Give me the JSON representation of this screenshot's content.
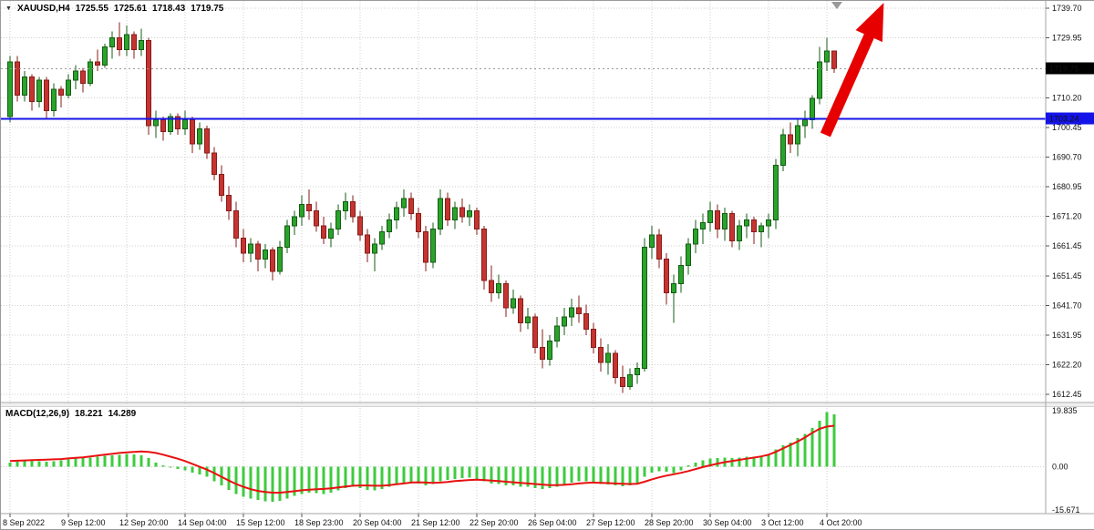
{
  "header": {
    "symbol": "XAUUSD,H4",
    "open": "1725.55",
    "high": "1725.61",
    "low": "1718.43",
    "close": "1719.75"
  },
  "colors": {
    "bull_fill": "#2aa32a",
    "bull_border": "#145c14",
    "bear_fill": "#c53430",
    "bear_border": "#871d1a",
    "macd_bar": "#3ecb3e",
    "signal_line": "#e81010",
    "hline": "#1414e8",
    "grid": "#cfcfcf",
    "frame": "#a6a6a6",
    "arrow": "#e60000",
    "tag_current_bg": "#000000",
    "tag_current_fg": "#ffffff",
    "tag_hline_fg": "#ffffff",
    "shift_marker": "#999999",
    "axis_text": "#111111"
  },
  "chart_data": {
    "type": "candlestick",
    "symbol": "XAUUSD",
    "timeframe": "H4",
    "ylim": [
      1609.8,
      1742.1
    ],
    "y_axis_labels": [
      {
        "text": "1739.70",
        "price": 1739.7
      },
      {
        "text": "1729.95",
        "price": 1729.95
      },
      {
        "text": "1710.20",
        "price": 1710.2
      },
      {
        "text": "1700.45",
        "price": 1700.45
      },
      {
        "text": "1690.70",
        "price": 1690.7
      },
      {
        "text": "1680.95",
        "price": 1680.95
      },
      {
        "text": "1671.20",
        "price": 1671.2
      },
      {
        "text": "1661.45",
        "price": 1661.45
      },
      {
        "text": "1651.45",
        "price": 1651.45
      },
      {
        "text": "1641.70",
        "price": 1641.7
      },
      {
        "text": "1631.95",
        "price": 1631.95
      },
      {
        "text": "1622.20",
        "price": 1622.2
      },
      {
        "text": "1612.45",
        "price": 1612.45
      }
    ],
    "x_labels": [
      {
        "bar": 0,
        "text": "8 Sep 2022"
      },
      {
        "bar": 8,
        "text": "9 Sep 12:00"
      },
      {
        "bar": 16,
        "text": "12 Sep 20:00"
      },
      {
        "bar": 24,
        "text": "14 Sep 04:00"
      },
      {
        "bar": 32,
        "text": "15 Sep 12:00"
      },
      {
        "bar": 40,
        "text": "18 Sep 23:00"
      },
      {
        "bar": 48,
        "text": "20 Sep 04:00"
      },
      {
        "bar": 56,
        "text": "21 Sep 12:00"
      },
      {
        "bar": 64,
        "text": "22 Sep 20:00"
      },
      {
        "bar": 72,
        "text": "26 Sep 04:00"
      },
      {
        "bar": 80,
        "text": "27 Sep 12:00"
      },
      {
        "bar": 88,
        "text": "28 Sep 20:00"
      },
      {
        "bar": 96,
        "text": "30 Sep 04:00"
      },
      {
        "bar": 104,
        "text": "3 Oct 12:00"
      },
      {
        "bar": 112,
        "text": "4 Oct 20:00"
      }
    ],
    "candles": [
      [
        1704,
        1724,
        1702,
        1722
      ],
      [
        1722,
        1724,
        1709,
        1711
      ],
      [
        1711,
        1719,
        1709,
        1717
      ],
      [
        1717,
        1718,
        1706,
        1709
      ],
      [
        1709,
        1717,
        1707,
        1716
      ],
      [
        1716,
        1717,
        1703,
        1706
      ],
      [
        1706,
        1715,
        1704,
        1713
      ],
      [
        1713,
        1714,
        1707,
        1711
      ],
      [
        1711,
        1718,
        1710,
        1716
      ],
      [
        1716,
        1721,
        1713,
        1719
      ],
      [
        1719,
        1720,
        1712,
        1715
      ],
      [
        1715,
        1723,
        1714,
        1722
      ],
      [
        1722,
        1726,
        1719,
        1721
      ],
      [
        1721,
        1728,
        1720,
        1727
      ],
      [
        1727,
        1732,
        1723,
        1730
      ],
      [
        1730,
        1735,
        1724,
        1726
      ],
      [
        1726,
        1734,
        1724,
        1731
      ],
      [
        1731,
        1732,
        1723,
        1726
      ],
      [
        1726,
        1733,
        1724,
        1729
      ],
      [
        1729,
        1730,
        1698,
        1701
      ],
      [
        1701,
        1706,
        1697,
        1703
      ],
      [
        1703,
        1704,
        1696,
        1699
      ],
      [
        1699,
        1705,
        1698,
        1704
      ],
      [
        1704,
        1705,
        1698,
        1700
      ],
      [
        1700,
        1706,
        1698,
        1703
      ],
      [
        1703,
        1704,
        1692,
        1695
      ],
      [
        1695,
        1702,
        1693,
        1700
      ],
      [
        1700,
        1701,
        1690,
        1692
      ],
      [
        1692,
        1694,
        1683,
        1685
      ],
      [
        1685,
        1688,
        1676,
        1678
      ],
      [
        1678,
        1681,
        1670,
        1673
      ],
      [
        1673,
        1676,
        1661,
        1664
      ],
      [
        1664,
        1667,
        1656,
        1659
      ],
      [
        1659,
        1664,
        1656,
        1662
      ],
      [
        1662,
        1663,
        1653,
        1657
      ],
      [
        1657,
        1662,
        1654,
        1660
      ],
      [
        1660,
        1661,
        1650,
        1653
      ],
      [
        1653,
        1663,
        1652,
        1661
      ],
      [
        1661,
        1670,
        1659,
        1668
      ],
      [
        1668,
        1673,
        1665,
        1671
      ],
      [
        1671,
        1678,
        1668,
        1675
      ],
      [
        1675,
        1680,
        1670,
        1673
      ],
      [
        1673,
        1676,
        1666,
        1668
      ],
      [
        1668,
        1671,
        1662,
        1664
      ],
      [
        1664,
        1669,
        1661,
        1667
      ],
      [
        1667,
        1675,
        1665,
        1673
      ],
      [
        1673,
        1679,
        1670,
        1676
      ],
      [
        1676,
        1678,
        1669,
        1671
      ],
      [
        1671,
        1673,
        1663,
        1665
      ],
      [
        1665,
        1667,
        1656,
        1659
      ],
      [
        1659,
        1664,
        1653,
        1662
      ],
      [
        1662,
        1668,
        1660,
        1666
      ],
      [
        1666,
        1672,
        1664,
        1670
      ],
      [
        1670,
        1676,
        1667,
        1674
      ],
      [
        1674,
        1680,
        1671,
        1677
      ],
      [
        1677,
        1679,
        1670,
        1672
      ],
      [
        1672,
        1674,
        1664,
        1666
      ],
      [
        1666,
        1668,
        1653,
        1656
      ],
      [
        1656,
        1669,
        1654,
        1667
      ],
      [
        1667,
        1680,
        1665,
        1677
      ],
      [
        1677,
        1679,
        1668,
        1670
      ],
      [
        1670,
        1676,
        1667,
        1674
      ],
      [
        1674,
        1677,
        1669,
        1671
      ],
      [
        1671,
        1675,
        1668,
        1673
      ],
      [
        1673,
        1674,
        1665,
        1667
      ],
      [
        1667,
        1668,
        1647,
        1650
      ],
      [
        1650,
        1655,
        1643,
        1646
      ],
      [
        1646,
        1652,
        1644,
        1649
      ],
      [
        1649,
        1650,
        1638,
        1641
      ],
      [
        1641,
        1647,
        1639,
        1644
      ],
      [
        1644,
        1645,
        1633,
        1636
      ],
      [
        1636,
        1641,
        1634,
        1638
      ],
      [
        1638,
        1639,
        1626,
        1628
      ],
      [
        1628,
        1634,
        1621,
        1624
      ],
      [
        1624,
        1632,
        1622,
        1630
      ],
      [
        1630,
        1638,
        1628,
        1635
      ],
      [
        1635,
        1641,
        1632,
        1638
      ],
      [
        1638,
        1644,
        1635,
        1641
      ],
      [
        1641,
        1645,
        1636,
        1639
      ],
      [
        1639,
        1642,
        1632,
        1634
      ],
      [
        1634,
        1636,
        1626,
        1628
      ],
      [
        1628,
        1631,
        1620,
        1623
      ],
      [
        1623,
        1629,
        1619,
        1626
      ],
      [
        1626,
        1627,
        1616,
        1618
      ],
      [
        1618,
        1622,
        1613,
        1615
      ],
      [
        1615,
        1621,
        1614,
        1619
      ],
      [
        1619,
        1623,
        1616,
        1621
      ],
      [
        1621,
        1664,
        1620,
        1661
      ],
      [
        1661,
        1668,
        1657,
        1665
      ],
      [
        1665,
        1667,
        1654,
        1657
      ],
      [
        1657,
        1659,
        1642,
        1646
      ],
      [
        1646,
        1652,
        1636,
        1649
      ],
      [
        1649,
        1658,
        1646,
        1655
      ],
      [
        1655,
        1664,
        1652,
        1662
      ],
      [
        1662,
        1670,
        1659,
        1667
      ],
      [
        1667,
        1672,
        1662,
        1669
      ],
      [
        1669,
        1676,
        1666,
        1673
      ],
      [
        1673,
        1675,
        1664,
        1667
      ],
      [
        1667,
        1674,
        1663,
        1672
      ],
      [
        1672,
        1673,
        1661,
        1663
      ],
      [
        1663,
        1670,
        1660,
        1668
      ],
      [
        1668,
        1672,
        1664,
        1670
      ],
      [
        1670,
        1671,
        1662,
        1666
      ],
      [
        1666,
        1669,
        1661,
        1668
      ],
      [
        1668,
        1672,
        1664,
        1670
      ],
      [
        1670,
        1690,
        1667,
        1688
      ],
      [
        1688,
        1700,
        1686,
        1698
      ],
      [
        1698,
        1702,
        1692,
        1695
      ],
      [
        1695,
        1703,
        1691,
        1701
      ],
      [
        1701,
        1706,
        1697,
        1703
      ],
      [
        1703,
        1711,
        1700,
        1710
      ],
      [
        1710,
        1727,
        1708,
        1722
      ],
      [
        1722,
        1730,
        1719,
        1725.55
      ],
      [
        1725.55,
        1725.61,
        1718.43,
        1719.75
      ]
    ],
    "horizontal_line": {
      "price": 1703.24,
      "label": "1703.24"
    },
    "current_price": {
      "value": 1719.75,
      "label": "1719.75"
    },
    "arrow": {
      "from_bar": 111.8,
      "from_price": 1698,
      "to_bar": 119.8,
      "to_price": 1741.5
    },
    "indicator": {
      "name": "MACD(12,26,9)",
      "value_main": "18.221",
      "value_signal": "14.289",
      "scale": {
        "max": 19.835,
        "min": -15.671,
        "labels": [
          "19.835",
          "0.00",
          "-15.671"
        ]
      },
      "histogram": [
        1.5,
        1.8,
        2.0,
        2.2,
        2.0,
        1.8,
        2.0,
        2.2,
        2.5,
        2.8,
        3.0,
        3.2,
        3.5,
        3.8,
        4.0,
        4.2,
        4.5,
        4.3,
        4.0,
        3.0,
        1.5,
        0.5,
        -0.3,
        -0.8,
        -1.2,
        -2.0,
        -2.6,
        -3.5,
        -5.0,
        -6.5,
        -8.0,
        -9.5,
        -10.5,
        -11.0,
        -11.5,
        -12.0,
        -12.2,
        -11.8,
        -11.0,
        -10.2,
        -9.5,
        -9.0,
        -9.2,
        -9.5,
        -9.0,
        -8.2,
        -7.5,
        -7.0,
        -7.5,
        -8.0,
        -8.2,
        -7.8,
        -7.0,
        -6.2,
        -5.5,
        -5.2,
        -5.8,
        -6.5,
        -6.0,
        -5.0,
        -4.5,
        -4.2,
        -4.0,
        -3.8,
        -4.2,
        -5.0,
        -5.8,
        -6.0,
        -6.5,
        -6.5,
        -7.0,
        -7.0,
        -7.5,
        -7.8,
        -7.5,
        -7.0,
        -6.2,
        -5.5,
        -5.0,
        -5.0,
        -5.5,
        -6.0,
        -6.2,
        -6.5,
        -6.8,
        -6.5,
        -6.0,
        -3.5,
        -2.0,
        -1.5,
        -1.8,
        -2.2,
        -1.2,
        0.5,
        1.5,
        2.2,
        2.8,
        3.0,
        3.2,
        3.0,
        3.2,
        3.5,
        3.5,
        3.8,
        4.5,
        6.0,
        7.5,
        8.5,
        10.0,
        11.5,
        13.5,
        16.0,
        19.0,
        18.2
      ],
      "signal": [
        2.0,
        2.1,
        2.2,
        2.3,
        2.4,
        2.5,
        2.6,
        2.7,
        2.9,
        3.1,
        3.3,
        3.6,
        3.9,
        4.2,
        4.5,
        4.8,
        5.0,
        5.2,
        5.3,
        5.2,
        4.8,
        4.2,
        3.5,
        2.8,
        2.0,
        1.0,
        0.0,
        -1.0,
        -2.2,
        -3.5,
        -4.8,
        -6.0,
        -7.0,
        -7.8,
        -8.4,
        -8.8,
        -9.0,
        -9.0,
        -8.8,
        -8.5,
        -8.2,
        -8.0,
        -7.8,
        -7.7,
        -7.5,
        -7.2,
        -6.9,
        -6.6,
        -6.5,
        -6.5,
        -6.6,
        -6.6,
        -6.4,
        -6.1,
        -5.8,
        -5.5,
        -5.4,
        -5.5,
        -5.6,
        -5.5,
        -5.3,
        -5.0,
        -4.8,
        -4.6,
        -4.5,
        -4.6,
        -4.8,
        -5.0,
        -5.2,
        -5.4,
        -5.6,
        -5.8,
        -6.0,
        -6.2,
        -6.4,
        -6.4,
        -6.3,
        -6.1,
        -5.8,
        -5.6,
        -5.5,
        -5.6,
        -5.7,
        -5.8,
        -5.9,
        -6.0,
        -5.9,
        -5.2,
        -4.4,
        -3.7,
        -3.1,
        -2.6,
        -2.1,
        -1.5,
        -0.8,
        -0.1,
        0.5,
        1.1,
        1.6,
        2.0,
        2.4,
        2.8,
        3.2,
        3.6,
        4.2,
        5.2,
        6.4,
        7.6,
        8.8,
        10.2,
        11.8,
        13.2,
        14.0,
        14.3
      ]
    }
  }
}
